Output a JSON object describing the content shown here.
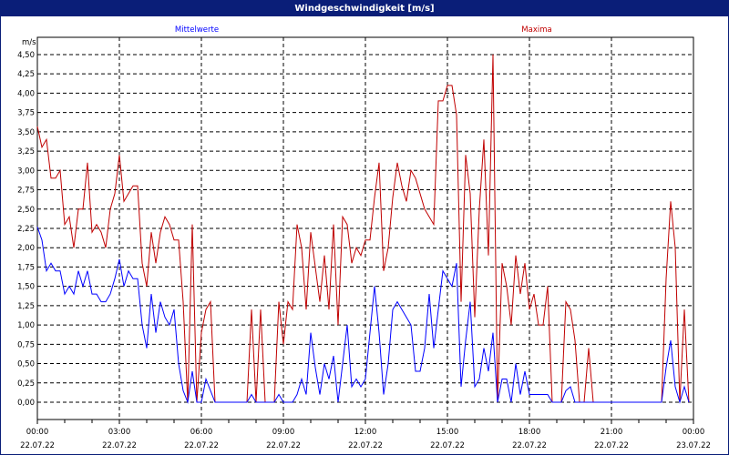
{
  "window": {
    "title": "Windgeschwindigkeit [m/s]"
  },
  "chart_data": {
    "type": "line",
    "title": "Windgeschwindigkeit [m/s]",
    "ylabel": "m/s",
    "ylim": [
      0,
      4.5
    ],
    "y_ticks": [
      "0,00",
      "0,25",
      "0,50",
      "0,75",
      "1,00",
      "1,25",
      "1,50",
      "1,75",
      "2,00",
      "2,25",
      "2,50",
      "2,75",
      "3,00",
      "3,25",
      "3,50",
      "3,75",
      "4,00",
      "4,25",
      "4,50"
    ],
    "x_ticks": [
      {
        "time": "00:00",
        "date": "22.07.22"
      },
      {
        "time": "03:00",
        "date": "22.07.22"
      },
      {
        "time": "06:00",
        "date": "22.07.22"
      },
      {
        "time": "09:00",
        "date": "22.07.22"
      },
      {
        "time": "12:00",
        "date": "22.07.22"
      },
      {
        "time": "15:00",
        "date": "22.07.22"
      },
      {
        "time": "18:00",
        "date": "22.07.22"
      },
      {
        "time": "21:00",
        "date": "22.07.22"
      },
      {
        "time": "00:00",
        "date": "23.07.22"
      }
    ],
    "x_range": [
      "22.07.22 00:00",
      "23.07.22 00:00"
    ],
    "x_start": "22.07.22 00:00",
    "interval_minutes": 10,
    "grid": true,
    "legend_placement": "top",
    "series": [
      {
        "name": "Mittelwerte",
        "color": "#0000ff",
        "values": [
          2.27,
          2.1,
          1.7,
          1.8,
          1.7,
          1.7,
          1.4,
          1.5,
          1.4,
          1.7,
          1.5,
          1.7,
          1.4,
          1.4,
          1.3,
          1.3,
          1.4,
          1.6,
          1.85,
          1.5,
          1.7,
          1.6,
          1.6,
          1.0,
          0.7,
          1.4,
          0.9,
          1.3,
          1.1,
          1.0,
          1.2,
          0.5,
          0.15,
          0,
          0.4,
          0,
          0,
          0.3,
          0.15,
          0,
          0,
          0,
          0,
          0,
          0,
          0,
          0,
          0.1,
          0,
          0,
          0,
          0,
          0,
          0.1,
          0,
          0,
          0,
          0.1,
          0.3,
          0.1,
          0.9,
          0.45,
          0.1,
          0.5,
          0.3,
          0.6,
          0,
          0.5,
          1.0,
          0.2,
          0.3,
          0.2,
          0.3,
          0.9,
          1.5,
          0.9,
          0.1,
          0.5,
          1.2,
          1.3,
          1.2,
          1.1,
          1.0,
          0.4,
          0.4,
          0.7,
          1.4,
          0.7,
          1.2,
          1.7,
          1.6,
          1.5,
          1.8,
          0.2,
          0.8,
          1.3,
          0.2,
          0.3,
          0.7,
          0.4,
          0.9,
          0,
          0.3,
          0.3,
          0,
          0.5,
          0.1,
          0.4,
          0.1,
          0.1,
          0.1,
          0.1,
          0.1,
          0,
          0,
          0,
          0.15,
          0.2,
          0,
          0,
          0,
          0,
          0,
          0,
          0,
          0,
          0,
          0,
          0,
          0,
          0,
          0,
          0,
          0,
          0,
          0,
          0,
          0,
          0.45,
          0.8,
          0.2,
          0,
          0.2,
          0
        ]
      },
      {
        "name": "Maxima",
        "color": "#c00000",
        "values": [
          3.57,
          3.3,
          3.4,
          2.9,
          2.9,
          3.0,
          2.3,
          2.4,
          2.0,
          2.5,
          2.5,
          3.1,
          2.2,
          2.3,
          2.2,
          2.0,
          2.5,
          2.7,
          3.2,
          2.6,
          2.7,
          2.8,
          2.8,
          1.8,
          1.5,
          2.2,
          1.8,
          2.2,
          2.4,
          2.3,
          2.1,
          2.1,
          1.3,
          0,
          2.3,
          0,
          0.9,
          1.2,
          1.3,
          0,
          0,
          0,
          0,
          0,
          0,
          0,
          0,
          1.2,
          0,
          1.2,
          0,
          0,
          0,
          1.3,
          0.75,
          1.3,
          1.2,
          2.3,
          2.0,
          1.2,
          2.2,
          1.75,
          1.3,
          1.9,
          1.2,
          2.3,
          1.0,
          2.4,
          2.3,
          1.8,
          2.0,
          1.9,
          2.1,
          2.1,
          2.65,
          3.1,
          1.7,
          2.0,
          2.65,
          3.1,
          2.8,
          2.6,
          3.0,
          2.9,
          2.7,
          2.5,
          2.4,
          2.3,
          3.9,
          3.9,
          4.1,
          4.1,
          3.72,
          1.3,
          3.2,
          2.7,
          1.1,
          2.5,
          3.4,
          1.9,
          4.5,
          0,
          1.8,
          1.5,
          1.0,
          1.9,
          1.4,
          1.8,
          1.2,
          1.4,
          1.0,
          1.0,
          1.5,
          0,
          0,
          0,
          1.3,
          1.2,
          0.8,
          0,
          0,
          0.7,
          0,
          0,
          0,
          0,
          0,
          0,
          0,
          0,
          0,
          0,
          0,
          0,
          0,
          0,
          0,
          0,
          1.6,
          2.6,
          2.0,
          0,
          1.2,
          0
        ]
      }
    ]
  }
}
